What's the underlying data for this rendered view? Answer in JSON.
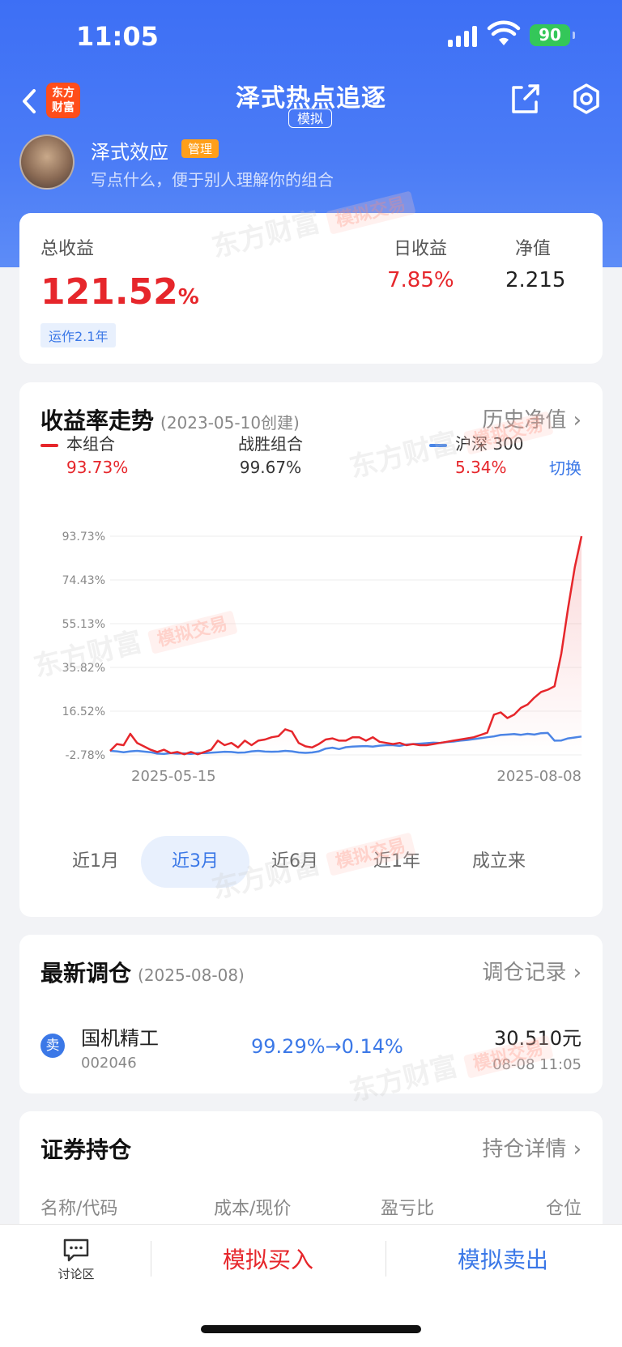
{
  "status": {
    "time": "11:05",
    "battery": "90"
  },
  "nav": {
    "logo_line1": "东方",
    "logo_line2": "财富",
    "title": "泽式热点追逐",
    "tag": "模拟"
  },
  "user": {
    "name": "泽式效应",
    "badge": "管理",
    "desc": "写点什么，便于别人理解你的组合"
  },
  "watermark": {
    "brand": "东方财富",
    "tag": "模拟交易"
  },
  "summary": {
    "total_label": "总收益",
    "total_value": "121.52",
    "total_unit": "%",
    "run_tag": "运作2.1年",
    "daily_label": "日收益",
    "daily_value": "7.85%",
    "nav_label": "净值",
    "nav_value": "2.215"
  },
  "trend": {
    "title": "收益率走势",
    "subtitle": "(2023-05-10创建)",
    "link": "历史净值",
    "legend": [
      {
        "name": "本组合",
        "value": "93.73%",
        "color": "#e6262b",
        "value_color": "#e6262b"
      },
      {
        "name": "战胜组合",
        "value": "99.67%",
        "color": "",
        "value_color": "#333"
      },
      {
        "name": "沪深 300",
        "value": "5.34%",
        "color": "#4a86e8",
        "value_color": "#e6262b"
      }
    ],
    "switch": "切换",
    "periods": [
      "近1月",
      "近3月",
      "近6月",
      "近1年",
      "成立来"
    ],
    "active_period": 1
  },
  "chart_data": {
    "type": "line",
    "x_start": "2025-05-15",
    "x_end": "2025-08-08",
    "ytick_labels": [
      "93.73%",
      "74.43%",
      "55.13%",
      "35.82%",
      "16.52%",
      "-2.78%"
    ],
    "ylim": [
      -2.78,
      93.73
    ],
    "series": [
      {
        "name": "本组合",
        "color": "#e6262b",
        "values": [
          -1,
          2,
          1.5,
          6.5,
          2.5,
          1,
          -0.5,
          -1.5,
          -0.5,
          -2,
          -1.5,
          -2.5,
          -1.5,
          -2.5,
          -1.5,
          -0.5,
          3.5,
          1.5,
          2.5,
          0.5,
          3.5,
          1.5,
          3.5,
          4,
          5,
          5.5,
          8.5,
          7.5,
          2.5,
          1,
          0.5,
          2,
          4,
          4.5,
          3.5,
          3.5,
          5,
          5,
          3.5,
          5,
          3,
          2.5,
          2,
          2.5,
          1.5,
          2,
          1.5,
          1.5,
          2,
          2.5,
          3,
          3.5,
          4,
          4.5,
          5,
          6,
          7,
          15,
          16,
          13.5,
          15,
          18,
          19.5,
          22.5,
          25,
          26,
          27.5,
          42,
          62,
          80,
          93.73
        ]
      },
      {
        "name": "沪深 300",
        "color": "#4a86e8",
        "values": [
          -1,
          -1.2,
          -1.6,
          -1.2,
          -1,
          -1.3,
          -1.6,
          -2.2,
          -2.3,
          -2,
          -2.2,
          -2.1,
          -2.3,
          -2,
          -2,
          -1.8,
          -1.6,
          -1.4,
          -1.5,
          -1.8,
          -1.7,
          -1.2,
          -1,
          -1.3,
          -1.4,
          -1.3,
          -1,
          -1.2,
          -1.7,
          -1.9,
          -1.7,
          -1.2,
          0,
          0.4,
          -0.2,
          0.6,
          0.9,
          1,
          1.1,
          0.9,
          1.3,
          1.5,
          1.5,
          1.2,
          1.8,
          2,
          2.2,
          2.4,
          2.6,
          2.5,
          2.9,
          3.1,
          3.5,
          3.8,
          4.2,
          4.6,
          5,
          5.4,
          6,
          6.2,
          6.4,
          6.1,
          6.5,
          6.2,
          6.8,
          6.9,
          3.5,
          3.6,
          4.5,
          4.9,
          5.34
        ]
      }
    ]
  },
  "rebalance": {
    "title": "最新调仓",
    "date": "(2025-08-08)",
    "link": "调仓记录",
    "item": {
      "action": "卖",
      "name": "国机精工",
      "code": "002046",
      "ratio": "99.29%→0.14%",
      "price": "30.510元",
      "time": "08-08 11:05"
    }
  },
  "holdings": {
    "title": "证券持仓",
    "link": "持仓详情",
    "cols": [
      "名称/代码",
      "成本/现价",
      "盈亏比",
      "仓位"
    ]
  },
  "bottom": {
    "discuss": "讨论区",
    "buy": "模拟买入",
    "sell": "模拟卖出"
  }
}
